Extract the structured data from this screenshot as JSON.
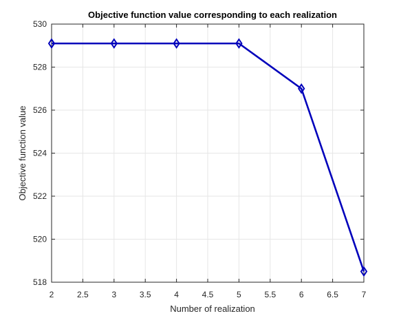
{
  "chart_data": {
    "type": "line",
    "title": "Objective function value corresponding to each realization",
    "xlabel": "Number of realization",
    "ylabel": "Objective function value",
    "xlim": [
      2,
      7
    ],
    "ylim": [
      518,
      530
    ],
    "xticks": [
      2,
      2.5,
      3,
      3.5,
      4,
      4.5,
      5,
      5.5,
      6,
      6.5,
      7
    ],
    "xtick_labels": [
      "2",
      "2.5",
      "3",
      "3.5",
      "4",
      "4.5",
      "5",
      "5.5",
      "6",
      "6.5",
      "7"
    ],
    "yticks": [
      518,
      520,
      522,
      524,
      526,
      528,
      530
    ],
    "ytick_labels": [
      "518",
      "520",
      "522",
      "524",
      "526",
      "528",
      "530"
    ],
    "grid": true,
    "series": [
      {
        "x": [
          2,
          3,
          4,
          5,
          6,
          7
        ],
        "values": [
          529.1,
          529.1,
          529.1,
          529.1,
          527.0,
          518.5
        ],
        "color": "#0000bb",
        "marker": "diamond"
      }
    ]
  }
}
